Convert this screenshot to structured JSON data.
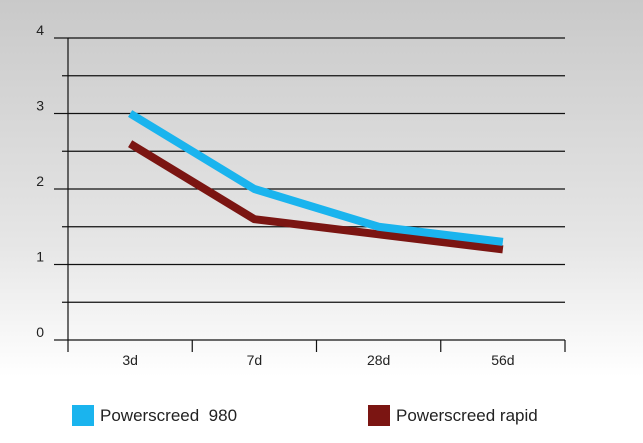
{
  "chart_data": {
    "type": "line",
    "categories": [
      "3d",
      "7d",
      "28d",
      "56d"
    ],
    "yticks": [
      "0",
      "1",
      "2",
      "3",
      "4"
    ],
    "ylim": [
      0,
      4
    ],
    "grid": "horizontal",
    "legend_position": "bottom",
    "series": [
      {
        "name": "Powerscreed  980",
        "color": "#1ab4ee",
        "values": [
          3.0,
          2.0,
          1.5,
          1.3
        ]
      },
      {
        "name": "Powerscreed rapid",
        "color": "#7b1512",
        "values": [
          2.6,
          1.6,
          1.4,
          1.2
        ]
      }
    ]
  }
}
